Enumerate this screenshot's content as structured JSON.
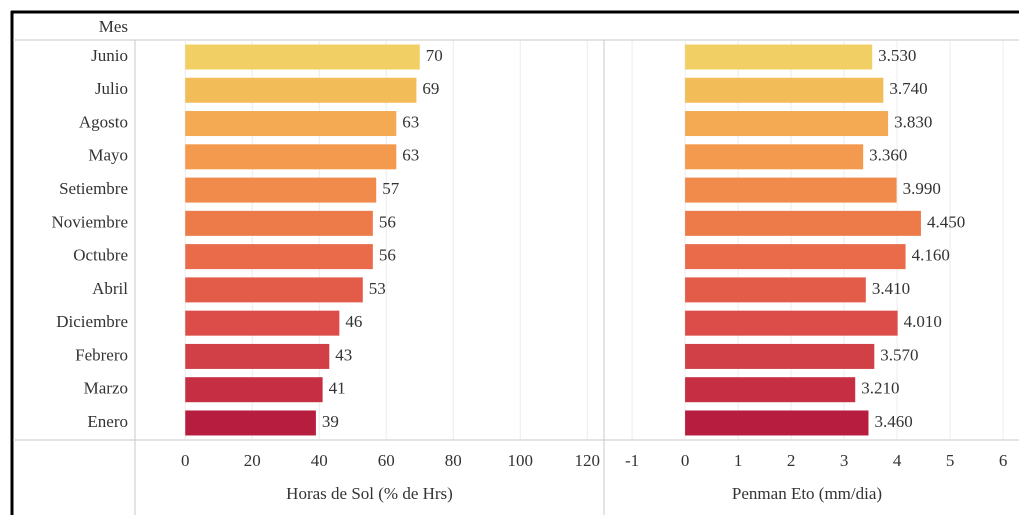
{
  "row_header": "Mes",
  "chart_data": [
    {
      "type": "bar",
      "orientation": "horizontal",
      "categories": [
        "Junio",
        "Julio",
        "Agosto",
        "Mayo",
        "Setiembre",
        "Noviembre",
        "Octubre",
        "Abril",
        "Diciembre",
        "Febrero",
        "Marzo",
        "Enero"
      ],
      "values": [
        70,
        69,
        63,
        63,
        57,
        56,
        56,
        53,
        46,
        43,
        41,
        39
      ],
      "colors": [
        "#f2cf64",
        "#f2bd58",
        "#f3aa52",
        "#f49a4e",
        "#f18b4b",
        "#ed7b4a",
        "#e96b4a",
        "#e35c4a",
        "#dc4d49",
        "#d13f47",
        "#c52e43",
        "#b71d3f"
      ],
      "xlabel": "Horas de Sol (% de Hrs)",
      "xlim": [
        -15,
        125
      ],
      "xticks": [
        0,
        20,
        40,
        60,
        80,
        100,
        120
      ],
      "grid": true
    },
    {
      "type": "bar",
      "orientation": "horizontal",
      "values": [
        3.53,
        3.74,
        3.83,
        3.36,
        3.99,
        4.45,
        4.16,
        3.41,
        4.01,
        3.57,
        3.21,
        3.46
      ],
      "value_labels": [
        "3.530",
        "3.740",
        "3.830",
        "3.360",
        "3.990",
        "4.450",
        "4.160",
        "3.410",
        "4.010",
        "3.570",
        "3.210",
        "3.460"
      ],
      "colors": [
        "#f2cf64",
        "#f2bd58",
        "#f3aa52",
        "#f49a4e",
        "#f18b4b",
        "#ed7b4a",
        "#e96b4a",
        "#e35c4a",
        "#dc4d49",
        "#d13f47",
        "#c52e43",
        "#b71d3f"
      ],
      "xlabel": "Penman Eto (mm/dia)",
      "xlim": [
        -1.53,
        6.3
      ],
      "xticks": [
        -1,
        0,
        1,
        2,
        3,
        4,
        5,
        6
      ],
      "grid": true
    }
  ]
}
